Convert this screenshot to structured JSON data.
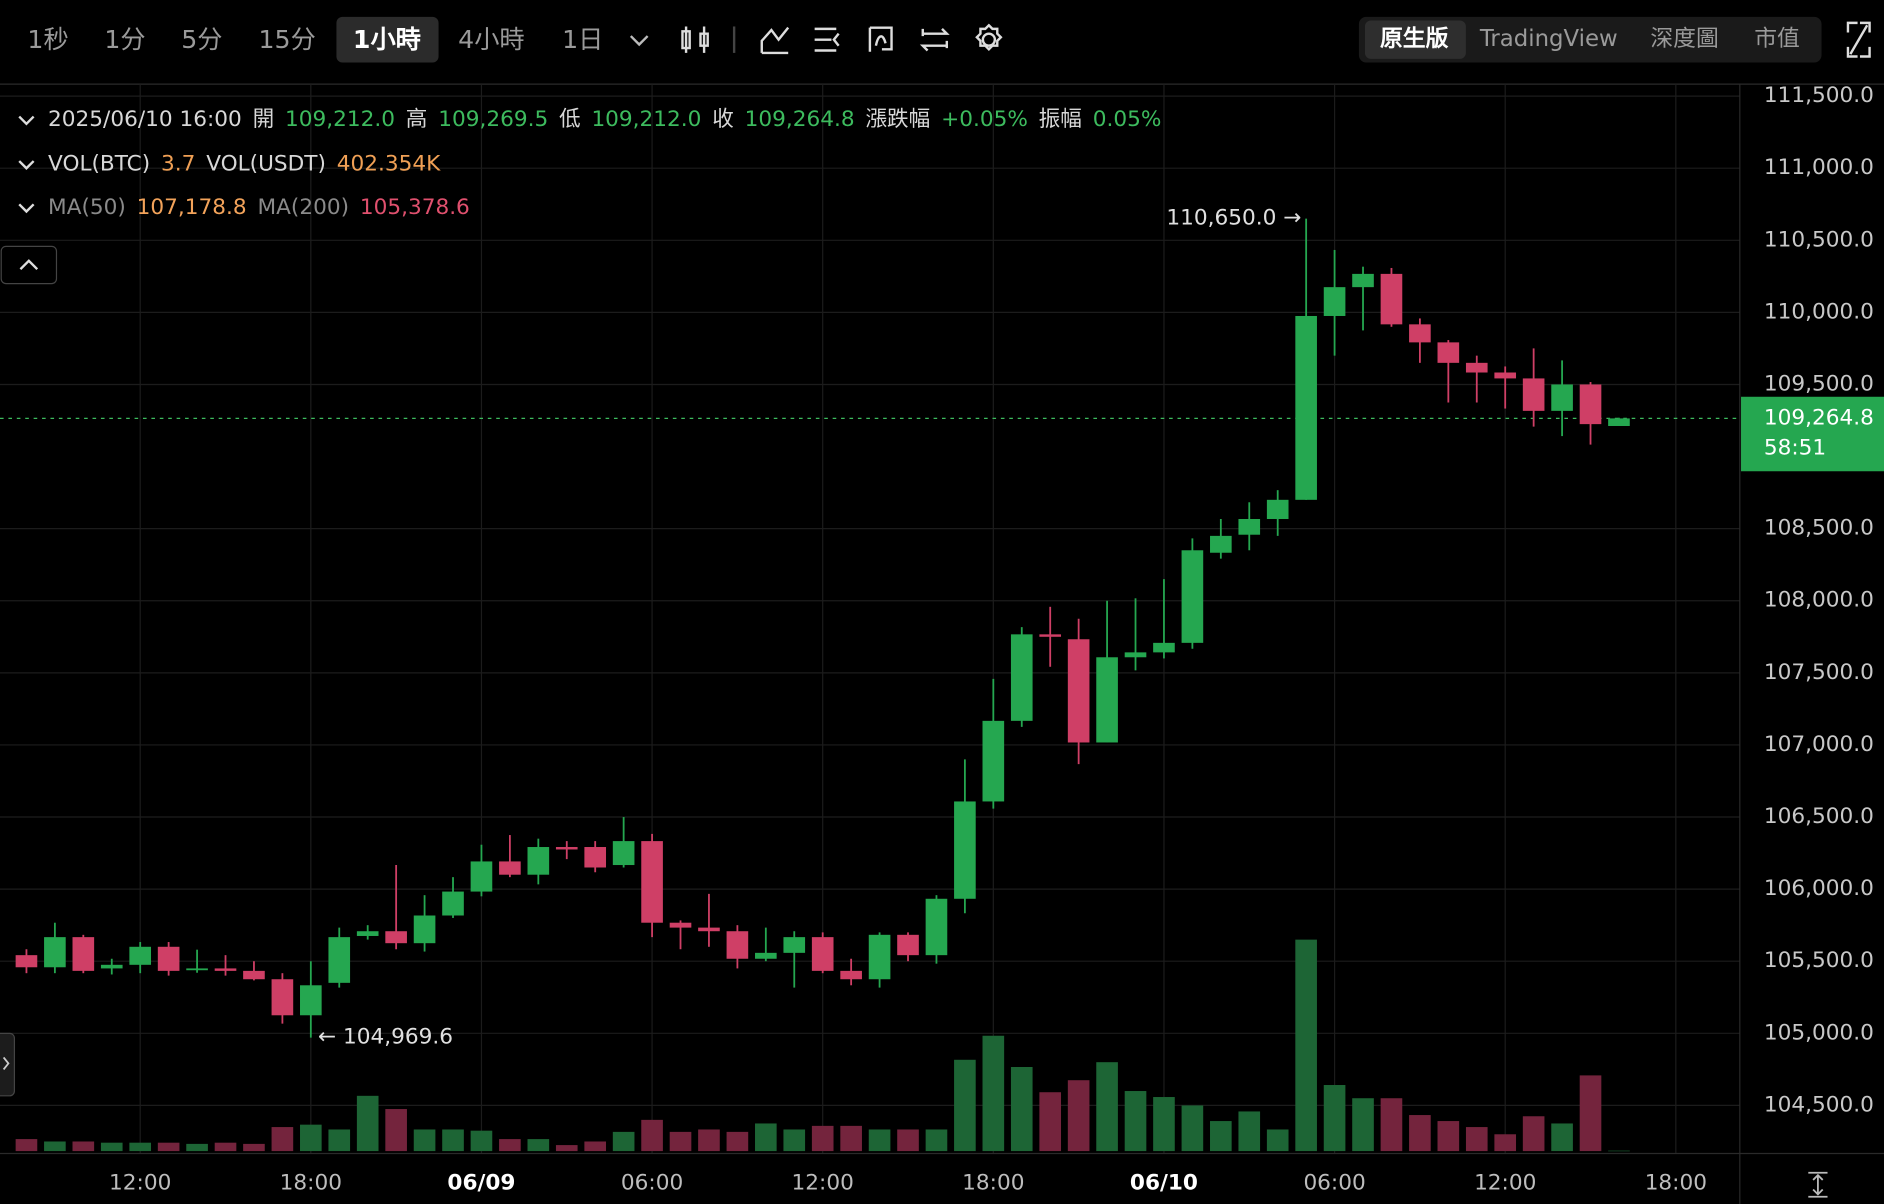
{
  "toolbar": {
    "intervals": [
      "1秒",
      "1分",
      "5分",
      "15分",
      "1小時",
      "4小時",
      "1日"
    ],
    "selected_interval": 4,
    "views": [
      "原生版",
      "TradingView",
      "深度圖",
      "市值"
    ],
    "selected_view": 0
  },
  "legend": {
    "rows": [
      [
        {
          "text": "2025/06/10 16:00",
          "color": "#d8d8d8"
        },
        {
          "text": "開",
          "color": "#d8d8d8"
        },
        {
          "text": "109,212.0",
          "color": "#3dbb5e"
        },
        {
          "text": "高",
          "color": "#d8d8d8"
        },
        {
          "text": "109,269.5",
          "color": "#3dbb5e"
        },
        {
          "text": "低",
          "color": "#d8d8d8"
        },
        {
          "text": "109,212.0",
          "color": "#3dbb5e"
        },
        {
          "text": "收",
          "color": "#d8d8d8"
        },
        {
          "text": "109,264.8",
          "color": "#3dbb5e"
        },
        {
          "text": "漲跌幅",
          "color": "#d8d8d8"
        },
        {
          "text": "+0.05%",
          "color": "#3dbb5e"
        },
        {
          "text": "振幅",
          "color": "#d8d8d8"
        },
        {
          "text": "0.05%",
          "color": "#3dbb5e"
        }
      ],
      [
        {
          "text": "VOL(BTC)",
          "color": "#d8d8d8"
        },
        {
          "text": "3.7",
          "color": "#f0a055"
        },
        {
          "text": "VOL(USDT)",
          "color": "#d8d8d8"
        },
        {
          "text": "402.354K",
          "color": "#f0a055"
        }
      ],
      [
        {
          "text": "MA(50)",
          "color": "#8a8a8a"
        },
        {
          "text": "107,178.8",
          "color": "#f3a35a"
        },
        {
          "text": "MA(200)",
          "color": "#8a8a8a"
        },
        {
          "text": "105,378.6",
          "color": "#e0506e"
        }
      ]
    ]
  },
  "chart_data": {
    "type": "candlestick",
    "x": [
      0,
      1,
      2,
      3,
      4,
      5,
      6,
      7,
      8,
      9,
      10,
      11,
      12,
      13,
      14,
      15,
      16,
      17,
      18,
      19,
      20,
      21,
      22,
      23,
      24,
      25,
      26,
      27,
      28,
      29,
      30,
      31,
      32,
      33,
      34,
      35,
      36,
      37,
      38,
      39,
      40,
      41,
      42,
      43,
      44,
      45,
      46,
      47,
      48,
      49,
      50,
      51,
      52,
      53,
      54,
      55,
      56
    ],
    "open": [
      105542,
      105458,
      105667,
      105450,
      105475,
      105600,
      105440,
      105450,
      105433,
      105375,
      105125,
      105350,
      105675,
      105708,
      105625,
      105817,
      105983,
      106192,
      106100,
      106292,
      106292,
      106167,
      106333,
      105767,
      105733,
      105708,
      105517,
      105558,
      105667,
      105433,
      105375,
      105683,
      105542,
      105933,
      106608,
      107167,
      107767,
      107733,
      107017,
      107608,
      107642,
      107708,
      108333,
      108458,
      108567,
      108700,
      109975,
      110175,
      110267,
      109917,
      109792,
      109650,
      109583,
      109542,
      109317,
      109500,
      109212.0
    ],
    "high": [
      105583,
      105767,
      105683,
      105517,
      105633,
      105633,
      105580,
      105542,
      105500,
      105417,
      105500,
      105733,
      105750,
      106167,
      105958,
      106083,
      106308,
      106375,
      106350,
      106333,
      106333,
      106500,
      106383,
      105783,
      105967,
      105750,
      105733,
      105708,
      105700,
      105517,
      105700,
      105700,
      105958,
      106900,
      107458,
      107817,
      107958,
      107875,
      108000,
      108017,
      108150,
      108433,
      108567,
      108683,
      108767,
      110650,
      110433,
      110317,
      110308,
      109958,
      109808,
      109700,
      109625,
      109750,
      109667,
      109517,
      109269.5
    ],
    "low": [
      105417,
      105417,
      105417,
      105408,
      105417,
      105400,
      105420,
      105400,
      105367,
      105067,
      104969.6,
      105317,
      105650,
      105583,
      105567,
      105800,
      105950,
      106083,
      106033,
      106208,
      106117,
      106150,
      105667,
      105583,
      105600,
      105450,
      105500,
      105317,
      105417,
      105333,
      105317,
      105500,
      105483,
      105833,
      106558,
      107125,
      107542,
      106867,
      107017,
      107517,
      107600,
      107667,
      108292,
      108350,
      108450,
      108700,
      109700,
      109875,
      109900,
      109650,
      109375,
      109375,
      109333,
      109208,
      109142,
      109083,
      109212.0
    ],
    "close": [
      105458,
      105667,
      105433,
      105475,
      105600,
      105433,
      105450,
      105433,
      105375,
      105125,
      105333,
      105667,
      105708,
      105625,
      105817,
      105983,
      106192,
      106100,
      106292,
      106275,
      106150,
      106333,
      105767,
      105733,
      105708,
      105517,
      105558,
      105667,
      105433,
      105375,
      105683,
      105542,
      105933,
      106608,
      107167,
      107767,
      107750,
      107017,
      107608,
      107642,
      107708,
      108350,
      108450,
      108567,
      108700,
      109975,
      110175,
      110267,
      109917,
      109792,
      109650,
      109583,
      109542,
      109317,
      109500,
      109225,
      109264.8
    ],
    "volume": [
      100,
      80,
      80,
      70,
      70,
      70,
      60,
      70,
      60,
      200,
      220,
      180,
      460,
      350,
      180,
      180,
      170,
      100,
      100,
      50,
      80,
      160,
      260,
      160,
      180,
      160,
      230,
      180,
      210,
      210,
      180,
      180,
      180,
      760,
      960,
      700,
      490,
      590,
      740,
      500,
      450,
      380,
      250,
      330,
      180,
      1760,
      550,
      440,
      440,
      300,
      250,
      200,
      140,
      290,
      230,
      630,
      3.7
    ],
    "up_color": "#25a750",
    "down_color": "#cf3f66",
    "volume_up_color": "#1d6535",
    "volume_down_color": "#74243d",
    "xlim": [
      -0.93,
      60.25
    ],
    "ylim": [
      104183,
      111583
    ],
    "volume_ylim": [
      0,
      2000
    ],
    "xticks": [
      {
        "value": 4,
        "label": "12:00"
      },
      {
        "value": 10,
        "label": "18:00"
      },
      {
        "value": 16,
        "label": "06/09"
      },
      {
        "value": 22,
        "label": "06:00"
      },
      {
        "value": 28,
        "label": "12:00"
      },
      {
        "value": 34,
        "label": "18:00"
      },
      {
        "value": 40,
        "label": "06/10"
      },
      {
        "value": 46,
        "label": "06:00"
      },
      {
        "value": 52,
        "label": "12:00"
      },
      {
        "value": 58,
        "label": "18:00"
      }
    ],
    "yticks": [
      {
        "value": 104500,
        "label": "104,500.0"
      },
      {
        "value": 105000,
        "label": "105,000.0"
      },
      {
        "value": 105500,
        "label": "105,500.0"
      },
      {
        "value": 106000,
        "label": "106,000.0"
      },
      {
        "value": 106500,
        "label": "106,500.0"
      },
      {
        "value": 107000,
        "label": "107,000.0"
      },
      {
        "value": 107500,
        "label": "107,500.0"
      },
      {
        "value": 108000,
        "label": "108,000.0"
      },
      {
        "value": 108500,
        "label": "108,500.0"
      },
      {
        "value": 109500,
        "label": "109,500.0"
      },
      {
        "value": 110000,
        "label": "110,000.0"
      },
      {
        "value": 110500,
        "label": "110,500.0"
      },
      {
        "value": 111000,
        "label": "111,000.0"
      },
      {
        "value": 111500,
        "label": "111,500.0"
      }
    ],
    "grid": true,
    "high_annotation": "110,650.0 →",
    "low_annotation": "← 104,969.6",
    "last_price_label": "109,264.8",
    "countdown": "58:51"
  }
}
